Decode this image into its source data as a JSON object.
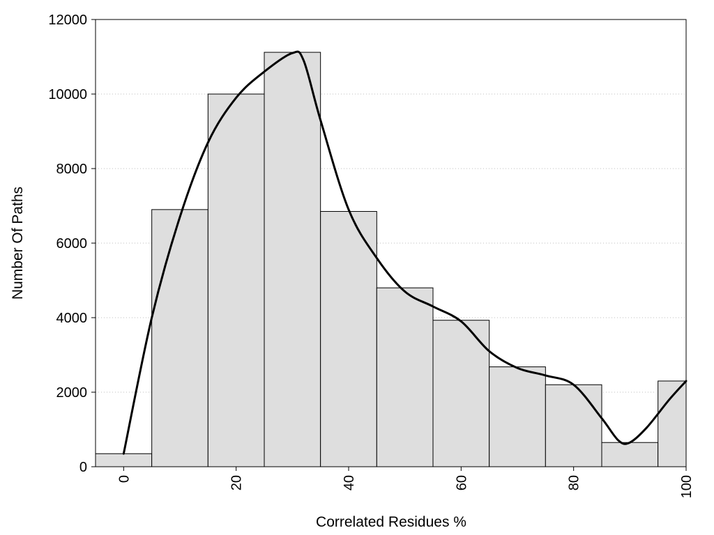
{
  "chart_data": {
    "type": "bar",
    "xlabel": "Correlated Residues %",
    "ylabel": "Number Of Paths",
    "xlim": [
      -5,
      100
    ],
    "ylim": [
      0,
      12000
    ],
    "x_ticks": [
      0,
      20,
      40,
      60,
      80,
      100
    ],
    "y_ticks": [
      0,
      2000,
      4000,
      6000,
      8000,
      10000,
      12000
    ],
    "grid": "horizontal dotted",
    "bin_width": 10,
    "bins": [
      {
        "center": 0,
        "value": 350
      },
      {
        "center": 10,
        "value": 6900
      },
      {
        "center": 20,
        "value": 10000
      },
      {
        "center": 30,
        "value": 11120
      },
      {
        "center": 40,
        "value": 6850
      },
      {
        "center": 50,
        "value": 4800
      },
      {
        "center": 60,
        "value": 3930
      },
      {
        "center": 70,
        "value": 2680
      },
      {
        "center": 80,
        "value": 2200
      },
      {
        "center": 90,
        "value": 650
      },
      {
        "center": 100,
        "value": 2300
      }
    ],
    "curve": [
      {
        "x": 0,
        "y": 350
      },
      {
        "x": 5,
        "y": 4000
      },
      {
        "x": 10,
        "y": 6700
      },
      {
        "x": 15,
        "y": 8700
      },
      {
        "x": 20,
        "y": 9900
      },
      {
        "x": 25,
        "y": 10600
      },
      {
        "x": 30,
        "y": 11100
      },
      {
        "x": 32,
        "y": 10900
      },
      {
        "x": 35,
        "y": 9300
      },
      {
        "x": 40,
        "y": 6900
      },
      {
        "x": 45,
        "y": 5600
      },
      {
        "x": 50,
        "y": 4700
      },
      {
        "x": 55,
        "y": 4300
      },
      {
        "x": 60,
        "y": 3900
      },
      {
        "x": 65,
        "y": 3100
      },
      {
        "x": 70,
        "y": 2650
      },
      {
        "x": 75,
        "y": 2450
      },
      {
        "x": 80,
        "y": 2200
      },
      {
        "x": 85,
        "y": 1300
      },
      {
        "x": 88,
        "y": 700
      },
      {
        "x": 90,
        "y": 650
      },
      {
        "x": 93,
        "y": 1050
      },
      {
        "x": 97,
        "y": 1800
      },
      {
        "x": 100,
        "y": 2300
      }
    ],
    "colors": {
      "bar_fill": "#dedede",
      "bar_stroke": "#000000",
      "curve": "#000000"
    }
  }
}
